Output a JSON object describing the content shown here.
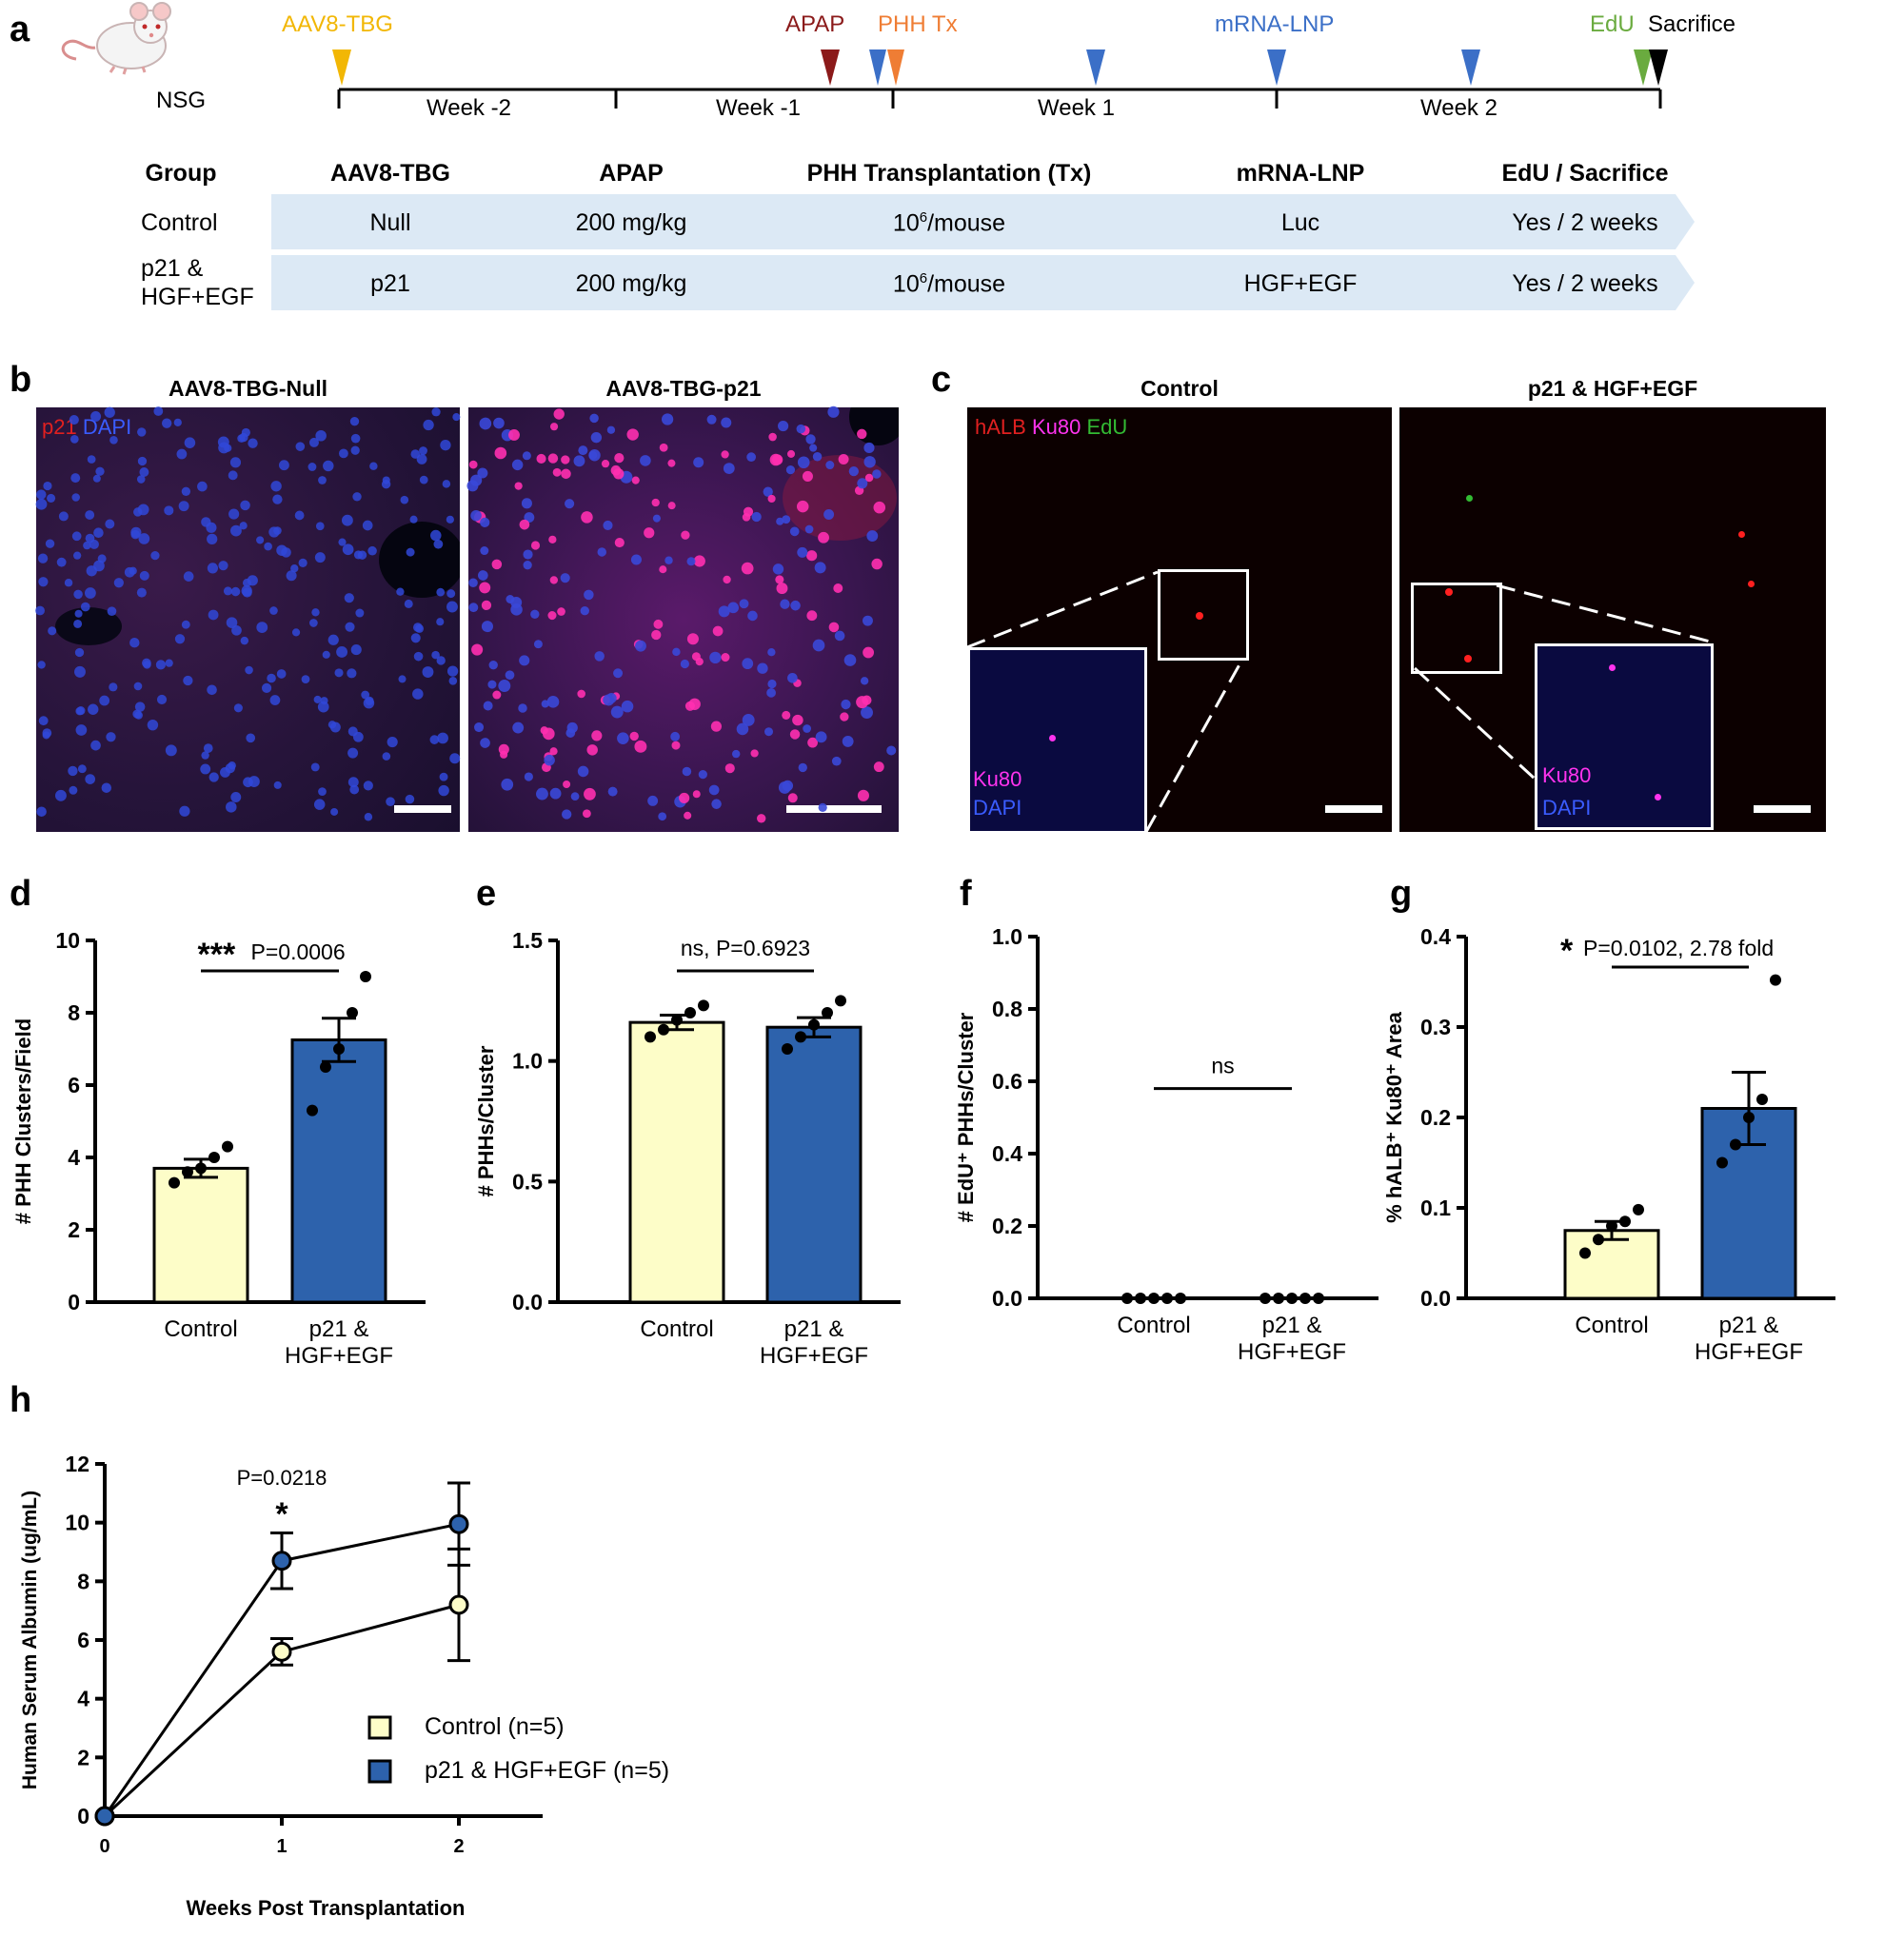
{
  "panel_labels": {
    "a": "a",
    "b": "b",
    "c": "c",
    "d": "d",
    "e": "e",
    "f": "f",
    "g": "g",
    "h": "h"
  },
  "colors": {
    "control_fill": "#fdfdc8",
    "treat_fill": "#2d62ac",
    "aav": "#f2b705",
    "apap": "#8b1a1a",
    "phh": "#ef7d34",
    "lnp": "#3b6fc7",
    "edu": "#6aab3f",
    "band": "#dce9f5"
  },
  "timeline": {
    "mouse_label": "NSG",
    "events": [
      {
        "label": "AAV8-TBG",
        "color": "#f2b705"
      },
      {
        "label": "APAP",
        "color": "#8b1a1a"
      },
      {
        "label": "PHH Tx",
        "color": "#ef7d34"
      },
      {
        "label": "mRNA-LNP",
        "color": "#3b6fc7"
      },
      {
        "label": "EdU",
        "color": "#6aab3f"
      },
      {
        "label": "Sacrifice",
        "color": "#000000"
      }
    ],
    "weeks": [
      "Week -2",
      "Week -1",
      "Week 1",
      "Week 2"
    ]
  },
  "table": {
    "headers": [
      "Group",
      "AAV8-TBG",
      "APAP",
      "PHH Transplantation (Tx)",
      "mRNA-LNP",
      "EdU / Sacrifice"
    ],
    "rows": [
      {
        "group": "Control",
        "aav": "Null",
        "apap": "200 mg/kg",
        "tx_base": "10",
        "tx_exp": "6",
        "tx_unit": "/mouse",
        "lnp": "Luc",
        "edu": "Yes / 2 weeks"
      },
      {
        "group_l1": "p21 &",
        "group_l2": "HGF+EGF",
        "aav": "p21",
        "apap": "200 mg/kg",
        "tx_base": "10",
        "tx_exp": "6",
        "tx_unit": "/mouse",
        "lnp": "HGF+EGF",
        "edu": "Yes / 2 weeks"
      }
    ]
  },
  "panel_b": {
    "left_title": "AAV8-TBG-Null",
    "right_title": "AAV8-TBG-p21",
    "legend": [
      {
        "text": "p21",
        "color": "#e02020"
      },
      {
        "text": "DAPI",
        "color": "#3a5cff"
      }
    ]
  },
  "panel_c": {
    "left_title": "Control",
    "right_title": "p21 & HGF+EGF",
    "legend": [
      {
        "text": "hALB",
        "color": "#e02020"
      },
      {
        "text": "Ku80",
        "color": "#ff33ee"
      },
      {
        "text": "EdU",
        "color": "#33bb33"
      }
    ],
    "inset_legend": [
      {
        "text": "Ku80",
        "color": "#ff33ee"
      },
      {
        "text": "DAPI",
        "color": "#3a5cff"
      }
    ]
  },
  "chart_data": [
    {
      "id": "d",
      "type": "bar",
      "ylabel": "# PHH Clusters/Field",
      "ylim": [
        0,
        10
      ],
      "yticks": [
        "0",
        "2",
        "4",
        "6",
        "8",
        "10"
      ],
      "categories": [
        "Control",
        "p21 & HGF+EGF"
      ],
      "category_lines": [
        [
          "Control"
        ],
        [
          "p21 &",
          "HGF+EGF"
        ]
      ],
      "values": [
        3.7,
        7.25
      ],
      "sem": [
        0.25,
        0.6
      ],
      "points": [
        [
          3.3,
          3.6,
          3.7,
          4.0,
          4.3
        ],
        [
          5.3,
          6.5,
          7.0,
          8.0,
          9.0
        ]
      ],
      "sig_star": "***",
      "sig_text": "P=0.0006"
    },
    {
      "id": "e",
      "type": "bar",
      "ylabel": "# PHHs/Cluster",
      "ylim": [
        0,
        1.5
      ],
      "yticks": [
        "0.0",
        "0.5",
        "1.0",
        "1.5"
      ],
      "categories": [
        "Control",
        "p21 & HGF+EGF"
      ],
      "category_lines": [
        [
          "Control"
        ],
        [
          "p21 &",
          "HGF+EGF"
        ]
      ],
      "values": [
        1.16,
        1.14
      ],
      "sem": [
        0.03,
        0.04
      ],
      "points": [
        [
          1.1,
          1.13,
          1.17,
          1.2,
          1.23
        ],
        [
          1.05,
          1.1,
          1.15,
          1.2,
          1.25
        ]
      ],
      "sig_star": "",
      "sig_text": "ns, P=0.6923"
    },
    {
      "id": "f",
      "type": "bar",
      "ylabel": "# EdU⁺ PHHs/Cluster",
      "ylim": [
        0,
        1.0
      ],
      "yticks": [
        "0.0",
        "0.2",
        "0.4",
        "0.6",
        "0.8",
        "1.0"
      ],
      "categories": [
        "Control",
        "p21 & HGF+EGF"
      ],
      "category_lines": [
        [
          "Control"
        ],
        [
          "p21 &",
          "HGF+EGF"
        ]
      ],
      "values": [
        0,
        0
      ],
      "sem": [
        0,
        0
      ],
      "points": [
        [
          0,
          0,
          0,
          0,
          0
        ],
        [
          0,
          0,
          0,
          0,
          0
        ]
      ],
      "sig_star": "",
      "sig_text": "ns",
      "sig_y": 0.58
    },
    {
      "id": "g",
      "type": "bar",
      "ylabel": "% hALB⁺ Ku80⁺ Area",
      "ylim": [
        0,
        0.4
      ],
      "yticks": [
        "0.0",
        "0.1",
        "0.2",
        "0.3",
        "0.4"
      ],
      "categories": [
        "Control",
        "p21 & HGF+EGF"
      ],
      "category_lines": [
        [
          "Control"
        ],
        [
          "p21 &",
          "HGF+EGF"
        ]
      ],
      "values": [
        0.075,
        0.21
      ],
      "sem": [
        0.01,
        0.04
      ],
      "points": [
        [
          0.05,
          0.065,
          0.08,
          0.085,
          0.098
        ],
        [
          0.15,
          0.17,
          0.2,
          0.22,
          0.352
        ]
      ],
      "sig_star": "*",
      "sig_text": "P=0.0102, 2.78 fold"
    },
    {
      "id": "h",
      "type": "line",
      "xlabel": "Weeks Post Transplantation",
      "ylabel": "Human Serum Albumin (ug/mL)",
      "x": [
        0,
        1,
        2
      ],
      "xticks": [
        "0",
        "1",
        "2"
      ],
      "ylim": [
        0,
        12
      ],
      "yticks": [
        "0",
        "2",
        "4",
        "6",
        "8",
        "10",
        "12"
      ],
      "series": [
        {
          "name": "Control (n=5)",
          "values": [
            0,
            5.6,
            7.2
          ],
          "sem": [
            0,
            0.45,
            1.9
          ],
          "color": "#fdfdc8"
        },
        {
          "name": "p21 & HGF+EGF (n=5)",
          "values": [
            0,
            8.7,
            9.95
          ],
          "sem": [
            0,
            0.95,
            1.4
          ],
          "color": "#2d62ac"
        }
      ],
      "annotation_p": "P=0.0218",
      "annotation_star": "*"
    }
  ]
}
